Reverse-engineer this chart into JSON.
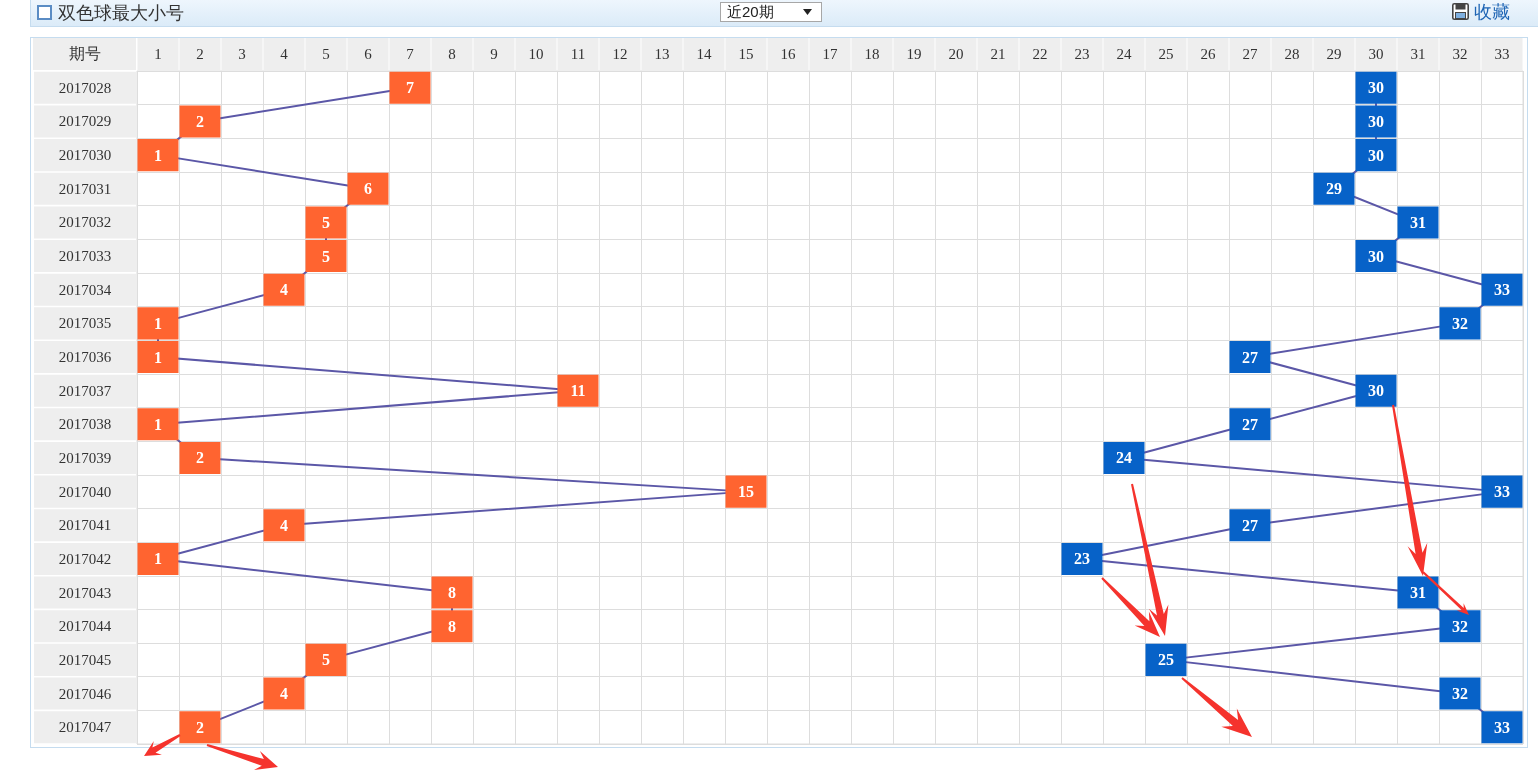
{
  "chart_data": {
    "type": "line",
    "orientation": "horizontal",
    "title": "双色球最大小号",
    "ylabel": "期号",
    "annotations": [
      "近20期",
      "收藏"
    ],
    "categories": [
      "2017028",
      "2017029",
      "2017030",
      "2017031",
      "2017032",
      "2017033",
      "2017034",
      "2017035",
      "2017036",
      "2017037",
      "2017038",
      "2017039",
      "2017040",
      "2017041",
      "2017042",
      "2017043",
      "2017044",
      "2017045",
      "2017046",
      "2017047"
    ],
    "series": [
      {
        "color": "#ff6430",
        "values": [
          7,
          2,
          1,
          6,
          5,
          5,
          4,
          1,
          1,
          11,
          1,
          2,
          15,
          4,
          1,
          8,
          8,
          5,
          4,
          2
        ]
      },
      {
        "color": "#0762c8",
        "values": [
          30,
          30,
          30,
          29,
          31,
          30,
          33,
          32,
          27,
          30,
          27,
          24,
          33,
          27,
          23,
          31,
          32,
          25,
          32,
          33
        ]
      }
    ],
    "xlim": [
      0.5,
      33.5
    ],
    "xticks": [
      1,
      2,
      3,
      4,
      5,
      6,
      7,
      8,
      9,
      10,
      11,
      12,
      13,
      14,
      15,
      16,
      17,
      18,
      19,
      20,
      21,
      22,
      23,
      24,
      25,
      26,
      27,
      28,
      29,
      30,
      31,
      32,
      33
    ],
    "grid": true,
    "marker": "square",
    "line_style": "solid",
    "data_labels": true
  }
}
